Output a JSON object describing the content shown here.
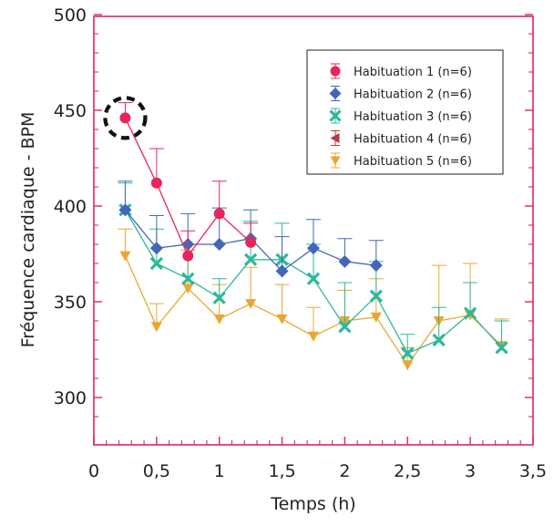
{
  "chart_data": {
    "type": "line",
    "title": "",
    "xlabel": "Temps (h)",
    "ylabel": "Fréquence cardiaque - BPM",
    "xlim": [
      0,
      3.5
    ],
    "ylim": [
      280,
      500
    ],
    "x_ticks": [
      {
        "value": 0,
        "label": "0"
      },
      {
        "value": 0.5,
        "label": "0,5"
      },
      {
        "value": 1,
        "label": "1"
      },
      {
        "value": 1.5,
        "label": "1,5"
      },
      {
        "value": 2,
        "label": "2"
      },
      {
        "value": 2.5,
        "label": "2,5"
      },
      {
        "value": 3,
        "label": "3"
      },
      {
        "value": 3.5,
        "label": "3,5"
      }
    ],
    "y_ticks": [
      {
        "value": 300,
        "label": "300"
      },
      {
        "value": 350,
        "label": "350"
      },
      {
        "value": 400,
        "label": "400"
      },
      {
        "value": 450,
        "label": "450"
      },
      {
        "value": 500,
        "label": "500"
      }
    ],
    "axis_color": "#d8295a",
    "legend_position": "top-right",
    "highlight": {
      "series": "Habituation 1 (n=6)",
      "x": 0.25,
      "y": 446,
      "style": "dashed-circle"
    },
    "series": [
      {
        "name": "Habituation 5 (n=6)",
        "color": "#e8a830",
        "marker": "triangle-down",
        "x": [
          0.25,
          0.5,
          0.75,
          1,
          1.25,
          1.5,
          1.75,
          2,
          2.25,
          2.5,
          2.75,
          3,
          3.25
        ],
        "y": [
          374,
          337,
          357,
          341,
          349,
          341,
          332,
          340,
          342,
          317,
          340,
          343,
          327
        ],
        "err": [
          14,
          12,
          20,
          18,
          19,
          18,
          15,
          16,
          20,
          9,
          29,
          27,
          14
        ]
      },
      {
        "name": "Habituation 4 (n=6)",
        "color": "#b83a3a",
        "marker": "triangle-left",
        "x": [],
        "y": [],
        "err": []
      },
      {
        "name": "Habituation 3 (n=6)",
        "color": "#2db89c",
        "marker": "x",
        "x": [
          0.25,
          0.5,
          0.75,
          1,
          1.25,
          1.5,
          1.75,
          2,
          2.25,
          2.5,
          2.75,
          3,
          3.25
        ],
        "y": [
          398,
          370,
          362,
          352,
          372,
          372,
          362,
          337,
          353,
          323,
          330,
          344,
          326
        ],
        "err": [
          14,
          18,
          18,
          10,
          20,
          19,
          18,
          23,
          18,
          10,
          17,
          16,
          14
        ]
      },
      {
        "name": "Habituation 2 (n=6)",
        "color": "#4466b8",
        "marker": "diamond",
        "x": [
          0.25,
          0.5,
          0.75,
          1,
          1.25,
          1.5,
          1.75,
          2,
          2.25
        ],
        "y": [
          398,
          378,
          380,
          380,
          383,
          366,
          378,
          371,
          369
        ],
        "err": [
          15,
          17,
          16,
          19,
          15,
          18,
          15,
          12,
          13
        ]
      },
      {
        "name": "Habituation 1 (n=6)",
        "color": "#e8245a",
        "marker": "circle",
        "x": [
          0.25,
          0.5,
          0.75,
          1,
          1.25
        ],
        "y": [
          446,
          412,
          374,
          396,
          381
        ],
        "err": [
          8,
          18,
          13,
          17,
          10
        ]
      }
    ],
    "legend_order": [
      "Habituation 1 (n=6)",
      "Habituation 2 (n=6)",
      "Habituation 3 (n=6)",
      "Habituation 4 (n=6)",
      "Habituation 5 (n=6)"
    ]
  }
}
